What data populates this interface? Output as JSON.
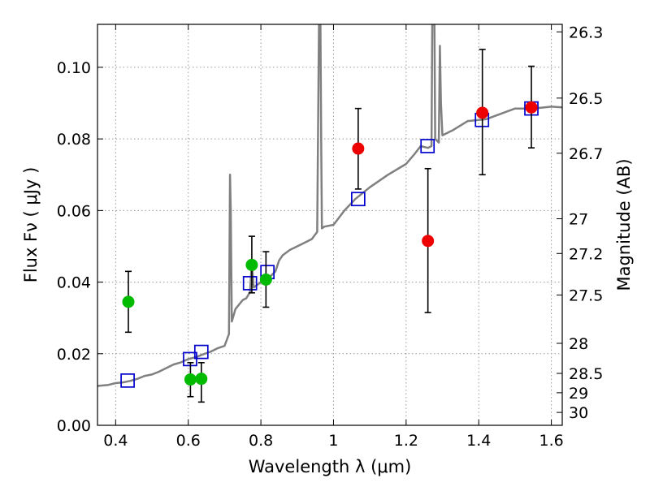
{
  "chart_data": {
    "type": "scatter",
    "xlabel": "Wavelength  λ (μm)",
    "ylabel": "Flux  Fν  ( μJy )",
    "y2label": "Magnitude (AB)",
    "xlim": [
      0.35,
      1.63
    ],
    "ylim": [
      0.0,
      0.112
    ],
    "grid": true,
    "x_ticks": [
      0.4,
      0.6,
      0.8,
      1.0,
      1.2,
      1.4,
      1.6
    ],
    "x_tick_labels": [
      "0.4",
      "0.6",
      "0.8",
      "1",
      "1.2",
      "1.4",
      "1.6"
    ],
    "y_ticks": [
      0.0,
      0.02,
      0.04,
      0.06,
      0.08,
      0.1
    ],
    "y_tick_labels": [
      "0.00",
      "0.02",
      "0.04",
      "0.06",
      "0.08",
      "0.10"
    ],
    "y2_ticks": [
      {
        "label": "26.3",
        "flux": 0.1099
      },
      {
        "label": "26.5",
        "flux": 0.0914
      },
      {
        "label": "26.7",
        "flux": 0.076
      },
      {
        "label": "27",
        "flux": 0.0577
      },
      {
        "label": "27.2",
        "flux": 0.048
      },
      {
        "label": "27.5",
        "flux": 0.0364
      },
      {
        "label": "28",
        "flux": 0.0229
      },
      {
        "label": "28.5",
        "flux": 0.0145
      },
      {
        "label": "29",
        "flux": 0.0091
      },
      {
        "label": "30",
        "flux": 0.0036
      }
    ],
    "colors": {
      "sed": "#808080",
      "model": "#0000cc",
      "green": "#00bb00",
      "red": "#ee0000",
      "errorbar": "#000000",
      "grid": "#999999"
    },
    "series": [
      {
        "kind": "line",
        "color": "#808080",
        "x": [
          0.35,
          0.38,
          0.4,
          0.42,
          0.44,
          0.46,
          0.48,
          0.5,
          0.52,
          0.54,
          0.56,
          0.58,
          0.6,
          0.62,
          0.64,
          0.66,
          0.68,
          0.7,
          0.712,
          0.715,
          0.717,
          0.72,
          0.73,
          0.75,
          0.76,
          0.77,
          0.775,
          0.78,
          0.8,
          0.82,
          0.84,
          0.85,
          0.86,
          0.88,
          0.9,
          0.92,
          0.94,
          0.955,
          0.96,
          0.962,
          0.964,
          0.966,
          0.968,
          0.975,
          1.0,
          1.03,
          1.06,
          1.1,
          1.15,
          1.2,
          1.225,
          1.24,
          1.26,
          1.27,
          1.272,
          1.275,
          1.278,
          1.28,
          1.29,
          1.293,
          1.296,
          1.3,
          1.33,
          1.37,
          1.42,
          1.46,
          1.5,
          1.55,
          1.6,
          1.63
        ],
        "y": [
          0.011,
          0.0113,
          0.0118,
          0.012,
          0.0124,
          0.013,
          0.0138,
          0.0142,
          0.015,
          0.016,
          0.017,
          0.0176,
          0.0185,
          0.019,
          0.0198,
          0.0205,
          0.0215,
          0.0222,
          0.0255,
          0.07,
          0.06,
          0.029,
          0.0325,
          0.035,
          0.0355,
          0.0372,
          0.0455,
          0.0385,
          0.04,
          0.041,
          0.043,
          0.046,
          0.0475,
          0.049,
          0.05,
          0.051,
          0.052,
          0.054,
          0.112,
          0.112,
          0.112,
          0.08,
          0.055,
          0.0555,
          0.056,
          0.06,
          0.0632,
          0.0665,
          0.07,
          0.073,
          0.076,
          0.078,
          0.0775,
          0.078,
          0.112,
          0.112,
          0.112,
          0.08,
          0.079,
          0.106,
          0.09,
          0.081,
          0.0825,
          0.085,
          0.0855,
          0.087,
          0.0885,
          0.0885,
          0.089,
          0.0888
        ]
      },
      {
        "kind": "squares",
        "color": "#0000cc",
        "x": [
          0.433,
          0.605,
          0.636,
          0.77,
          0.818,
          1.068,
          1.259,
          1.409,
          1.545
        ],
        "y": [
          0.0125,
          0.0185,
          0.0205,
          0.0397,
          0.0428,
          0.0632,
          0.078,
          0.0853,
          0.0885
        ]
      },
      {
        "kind": "points",
        "color": "#00bb00",
        "x": [
          0.435,
          0.606,
          0.636,
          0.775,
          0.814
        ],
        "y": [
          0.0345,
          0.0128,
          0.013,
          0.0448,
          0.0407
        ],
        "err_low": [
          0.026,
          0.008,
          0.0065,
          0.037,
          0.033
        ],
        "err_high": [
          0.043,
          0.0175,
          0.0175,
          0.0528,
          0.0485
        ]
      },
      {
        "kind": "points",
        "color": "#ee0000",
        "x": [
          1.068,
          1.26,
          1.41,
          1.545
        ],
        "y": [
          0.0773,
          0.0515,
          0.0873,
          0.0888
        ],
        "err_low": [
          0.066,
          0.0315,
          0.07,
          0.0775
        ],
        "err_high": [
          0.0885,
          0.0717,
          0.105,
          0.1003
        ]
      }
    ]
  }
}
